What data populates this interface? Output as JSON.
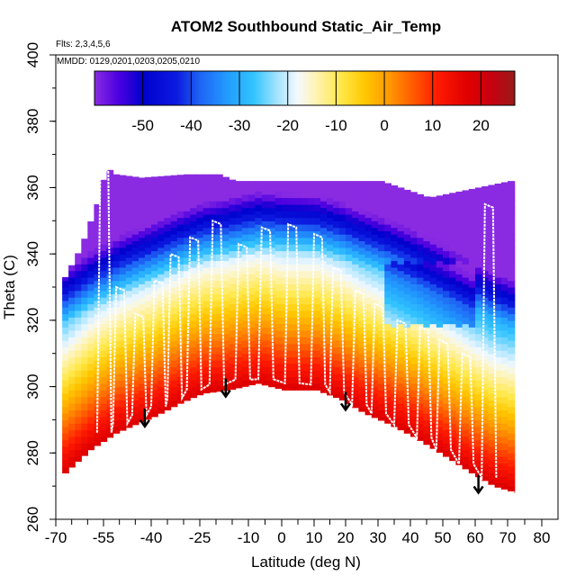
{
  "chart_data": {
    "type": "heatmap",
    "title": "ATOM2 Southbound Static_Air_Temp",
    "xlabel": "Latitude (deg N)",
    "ylabel": "Theta (C)",
    "annotations": {
      "flights": "Flts: 2,3,4,5,6",
      "dates": "MMDD: 0129,0201,0203,0205,0210"
    },
    "xlim": [
      -70,
      80
    ],
    "ylim": [
      260,
      400
    ],
    "x_ticks": [
      -70,
      -55,
      -40,
      -25,
      -10,
      0,
      10,
      20,
      30,
      40,
      50,
      60,
      70,
      80
    ],
    "x_tick_labels": [
      "-70",
      "-55",
      "-40",
      "-25",
      "-10",
      "0",
      "10",
      "20",
      "30",
      "40",
      "50",
      "60",
      "70",
      "80"
    ],
    "y_ticks": [
      260,
      280,
      300,
      320,
      340,
      360,
      380,
      400
    ],
    "y_tick_labels": [
      "260",
      "280",
      "300",
      "320",
      "340",
      "360",
      "380",
      "400"
    ],
    "colorbar": {
      "range": [
        -60,
        27
      ],
      "ticks": [
        -50,
        -40,
        -30,
        -20,
        -10,
        0,
        10,
        20
      ],
      "tick_labels": [
        "-50",
        "-40",
        "-30",
        "-20",
        "-10",
        "0",
        "10",
        "20"
      ],
      "stops": [
        {
          "v": -60,
          "color": "#8a2be2"
        },
        {
          "v": -55,
          "color": "#4b00e0"
        },
        {
          "v": -50,
          "color": "#0000cd"
        },
        {
          "v": -43,
          "color": "#0c1ae0"
        },
        {
          "v": -38,
          "color": "#1f66f5"
        },
        {
          "v": -32,
          "color": "#22a0ff"
        },
        {
          "v": -27,
          "color": "#33c4ff"
        },
        {
          "v": -22,
          "color": "#a8e4ff"
        },
        {
          "v": -18,
          "color": "#f4f9ff"
        },
        {
          "v": -14,
          "color": "#fff3b0"
        },
        {
          "v": -9,
          "color": "#ffe84a"
        },
        {
          "v": -4,
          "color": "#ffc700"
        },
        {
          "v": 1,
          "color": "#ff9800"
        },
        {
          "v": 6,
          "color": "#ff5a00"
        },
        {
          "v": 11,
          "color": "#ff1a00"
        },
        {
          "v": 17,
          "color": "#e00000"
        },
        {
          "v": 22,
          "color": "#c80010"
        },
        {
          "v": 27,
          "color": "#9a1a1a"
        }
      ]
    },
    "arrows": [
      {
        "lat": -42,
        "theta": 288
      },
      {
        "lat": -17,
        "theta": 297
      },
      {
        "lat": 20,
        "theta": 293
      },
      {
        "lat": 61,
        "theta": 268
      }
    ],
    "domain_bottom": [
      [
        -68,
        274
      ],
      [
        -60,
        281
      ],
      [
        -52,
        286
      ],
      [
        -45,
        289
      ],
      [
        -40,
        291
      ],
      [
        -32,
        295
      ],
      [
        -25,
        298
      ],
      [
        -17,
        299
      ],
      [
        -8,
        301
      ],
      [
        0,
        299
      ],
      [
        10,
        299
      ],
      [
        18,
        296
      ],
      [
        25,
        292
      ],
      [
        32,
        289
      ],
      [
        40,
        285
      ],
      [
        50,
        279
      ],
      [
        58,
        274
      ],
      [
        65,
        270
      ],
      [
        72,
        268
      ]
    ],
    "domain_top": [
      [
        -68,
        333
      ],
      [
        -63,
        342
      ],
      [
        -58,
        355
      ],
      [
        -55,
        366
      ],
      [
        -52,
        364
      ],
      [
        -44,
        363
      ],
      [
        -30,
        364
      ],
      [
        -20,
        364
      ],
      [
        -15,
        362
      ],
      [
        10,
        362
      ],
      [
        27,
        362
      ],
      [
        30,
        362
      ],
      [
        45,
        357
      ],
      [
        60,
        360
      ],
      [
        70,
        362
      ],
      [
        72,
        361
      ]
    ]
  }
}
